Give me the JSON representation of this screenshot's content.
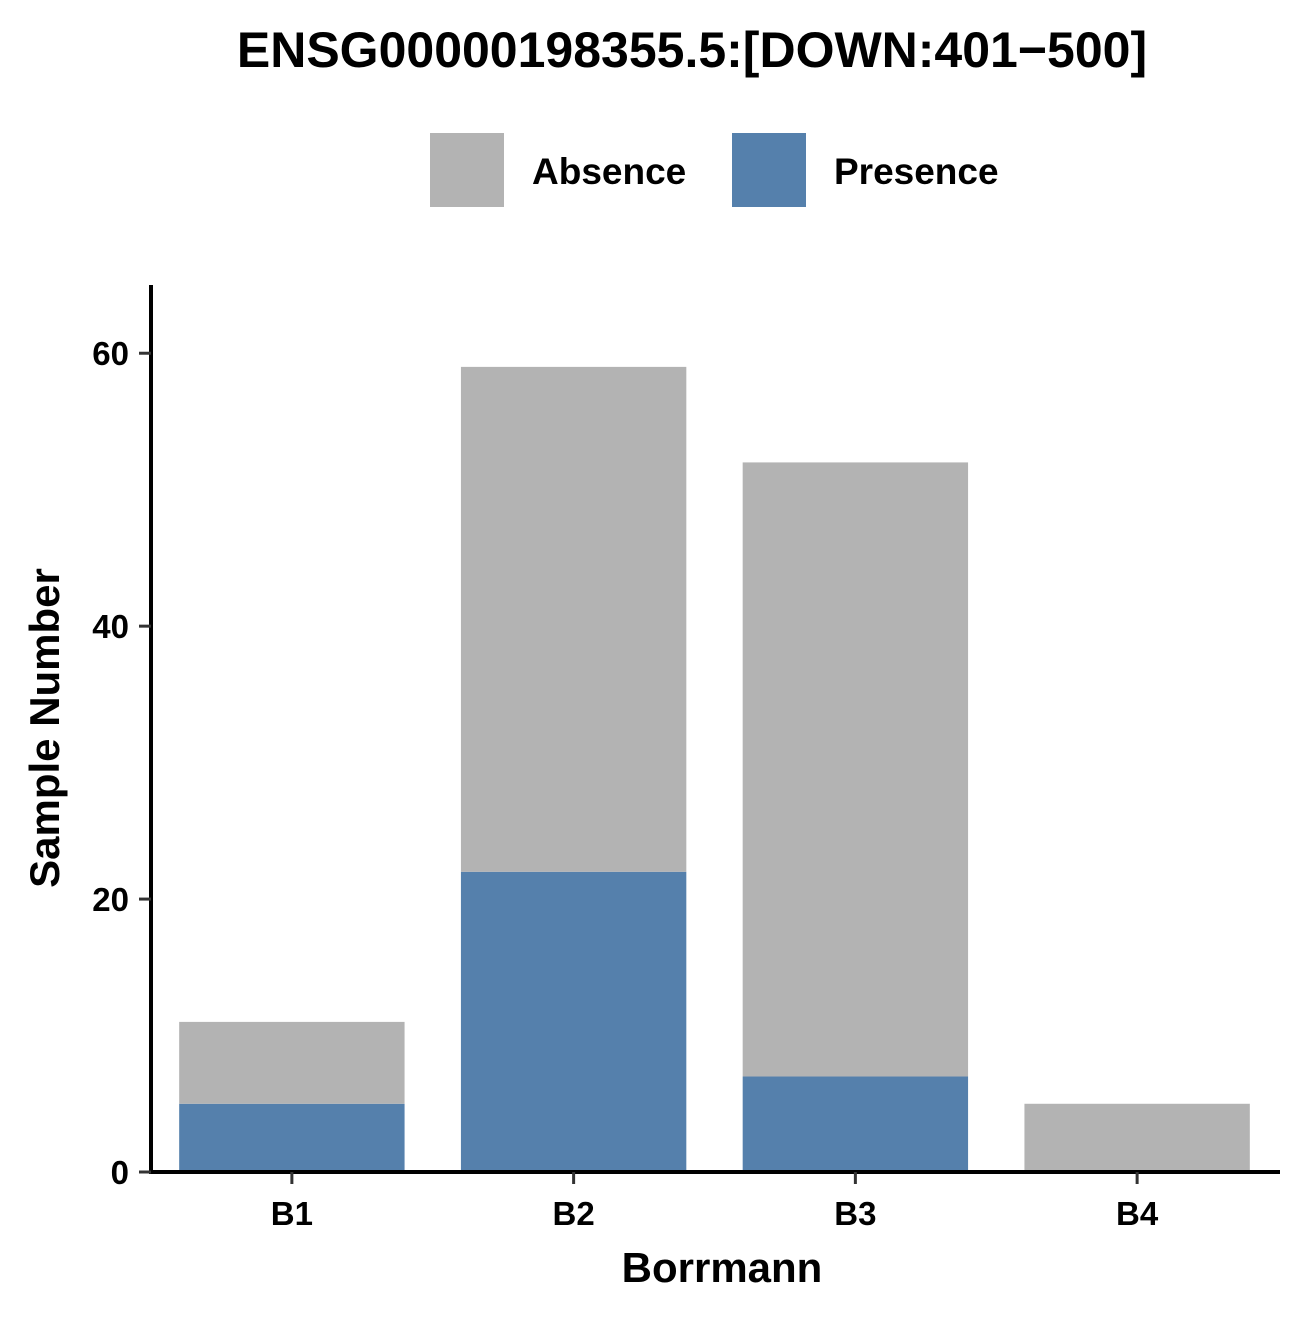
{
  "chart_data": {
    "type": "bar",
    "stacked": true,
    "title": "ENSG00000198355.5:[DOWN:401−500]",
    "xlabel": "Borrmann",
    "ylabel": "Sample Number",
    "categories": [
      "B1",
      "B2",
      "B3",
      "B4"
    ],
    "series": [
      {
        "name": "Absence",
        "color": "#b3b3b3",
        "values": [
          6,
          37,
          45,
          5
        ]
      },
      {
        "name": "Presence",
        "color": "#5580ac",
        "values": [
          5,
          22,
          7,
          0
        ]
      }
    ],
    "ylim": [
      0,
      65
    ],
    "yticks": [
      0,
      20,
      40,
      60
    ],
    "legend_position": "top",
    "grid": false
  }
}
